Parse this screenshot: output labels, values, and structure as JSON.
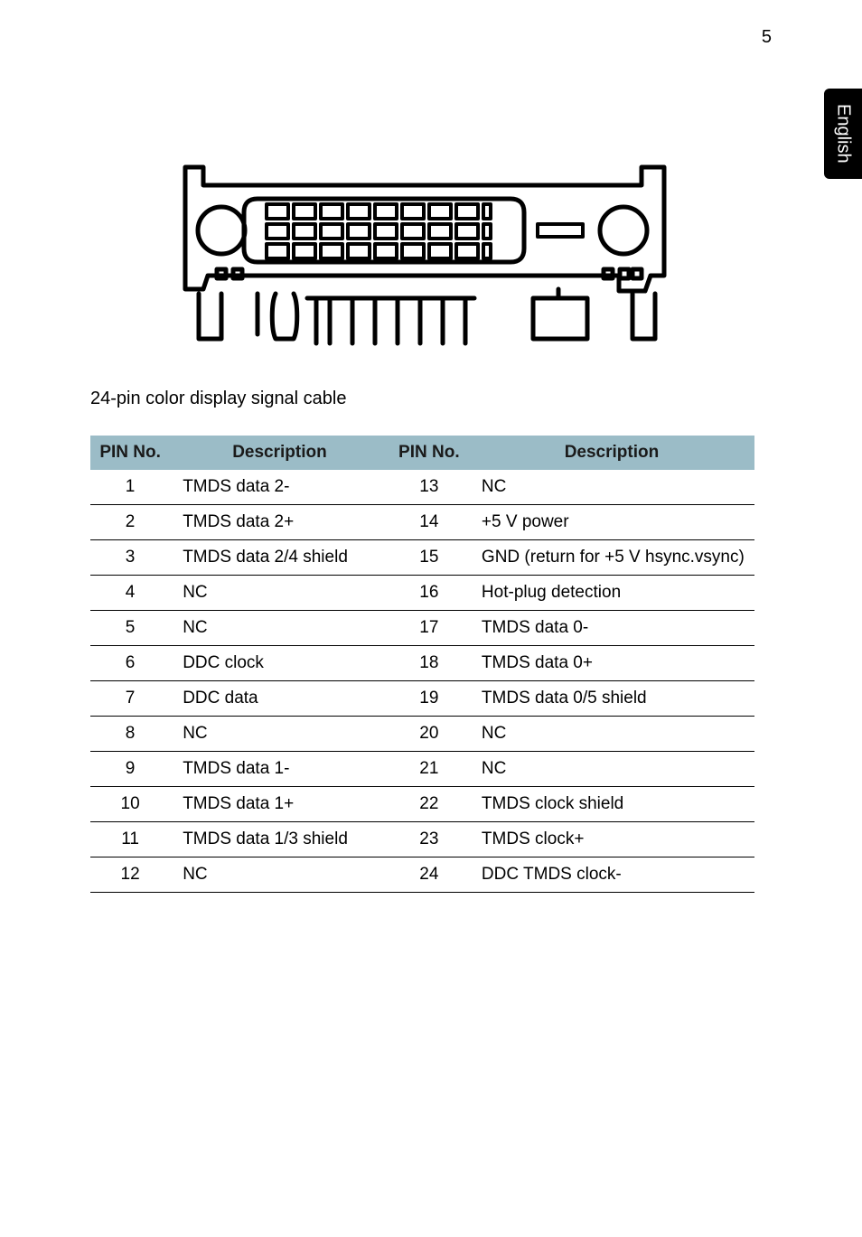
{
  "page_number": "5",
  "side_tab": "English",
  "caption": "24-pin color display signal cable",
  "table": {
    "headers": [
      "PIN No.",
      "Description",
      "PIN No.",
      "Description"
    ],
    "rows": [
      [
        "1",
        "TMDS data 2-",
        "13",
        "NC"
      ],
      [
        "2",
        "TMDS data 2+",
        "14",
        "+5 V power"
      ],
      [
        "3",
        "TMDS data 2/4 shield",
        "15",
        "GND (return for +5 V hsync.vsync)"
      ],
      [
        "4",
        "NC",
        "16",
        "Hot-plug detection"
      ],
      [
        "5",
        "NC",
        "17",
        "TMDS data 0-"
      ],
      [
        "6",
        "DDC clock",
        "18",
        "TMDS data 0+"
      ],
      [
        "7",
        "DDC data",
        "19",
        "TMDS data 0/5 shield"
      ],
      [
        "8",
        "NC",
        "20",
        "NC"
      ],
      [
        "9",
        "TMDS data 1-",
        "21",
        "NC"
      ],
      [
        "10",
        "TMDS data 1+",
        "22",
        "TMDS clock shield"
      ],
      [
        "11",
        "TMDS data 1/3 shield",
        "23",
        "TMDS clock+"
      ],
      [
        "12",
        "NC",
        "24",
        "DDC TMDS clock-"
      ]
    ]
  },
  "diagram": {
    "stroke": "#000000",
    "strokeWidth": 5,
    "pinBlockCols": 8,
    "pinBlockRows": 3
  }
}
